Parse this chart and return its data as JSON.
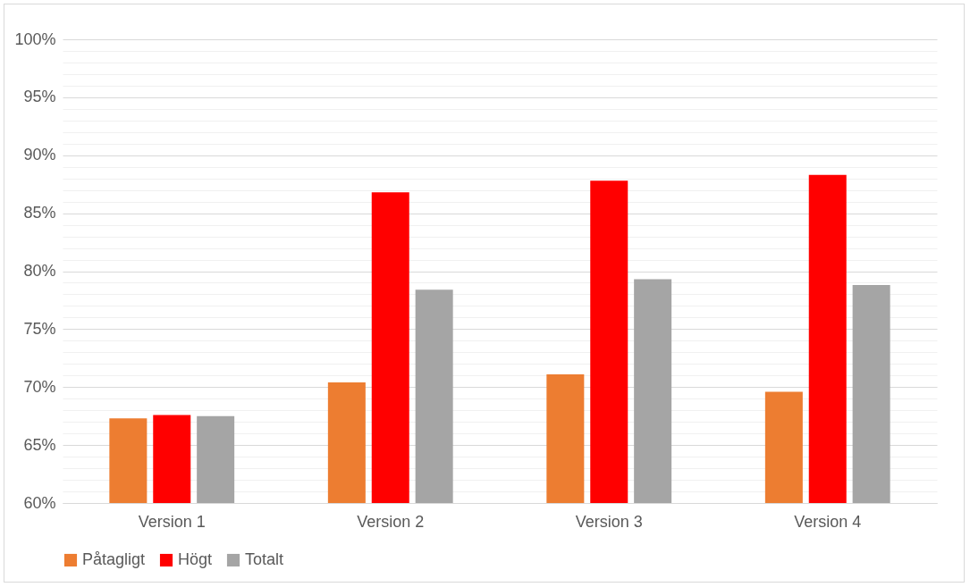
{
  "chart_data": {
    "type": "bar",
    "categories": [
      "Version 1",
      "Version 2",
      "Version 3",
      "Version 4"
    ],
    "series": [
      {
        "name": "Påtagligt",
        "color": "#ed7d31",
        "values": [
          67.3,
          70.4,
          71.1,
          69.6
        ]
      },
      {
        "name": "Högt",
        "color": "#ff0000",
        "values": [
          67.6,
          86.8,
          87.8,
          88.3
        ]
      },
      {
        "name": "Totalt",
        "color": "#a5a5a5",
        "values": [
          67.5,
          78.4,
          79.3,
          78.8
        ]
      }
    ],
    "ylim": [
      60,
      100
    ],
    "yticks": [
      {
        "value": 60,
        "label": "60%"
      },
      {
        "value": 61,
        "label": null
      },
      {
        "value": 62,
        "label": null
      },
      {
        "value": 63,
        "label": null
      },
      {
        "value": 64,
        "label": null
      },
      {
        "value": 65,
        "label": "65%"
      },
      {
        "value": 66,
        "label": null
      },
      {
        "value": 67,
        "label": null
      },
      {
        "value": 68,
        "label": null
      },
      {
        "value": 69,
        "label": null
      },
      {
        "value": 70,
        "label": "70%"
      },
      {
        "value": 71,
        "label": null
      },
      {
        "value": 72,
        "label": null
      },
      {
        "value": 73,
        "label": null
      },
      {
        "value": 74,
        "label": null
      },
      {
        "value": 75,
        "label": "75%"
      },
      {
        "value": 76,
        "label": null
      },
      {
        "value": 77,
        "label": null
      },
      {
        "value": 78,
        "label": null
      },
      {
        "value": 79,
        "label": null
      },
      {
        "value": 80,
        "label": "80%"
      },
      {
        "value": 81,
        "label": null
      },
      {
        "value": 82,
        "label": null
      },
      {
        "value": 83,
        "label": null
      },
      {
        "value": 84,
        "label": null
      },
      {
        "value": 85,
        "label": "85%"
      },
      {
        "value": 86,
        "label": null
      },
      {
        "value": 87,
        "label": null
      },
      {
        "value": 88,
        "label": null
      },
      {
        "value": 89,
        "label": null
      },
      {
        "value": 90,
        "label": "90%"
      },
      {
        "value": 91,
        "label": null
      },
      {
        "value": 92,
        "label": null
      },
      {
        "value": 93,
        "label": null
      },
      {
        "value": 94,
        "label": null
      },
      {
        "value": 95,
        "label": "95%"
      },
      {
        "value": 96,
        "label": null
      },
      {
        "value": 97,
        "label": null
      },
      {
        "value": 98,
        "label": null
      },
      {
        "value": 99,
        "label": null
      },
      {
        "value": 100,
        "label": "100%"
      }
    ],
    "grid": "y",
    "legend": "bottom"
  }
}
